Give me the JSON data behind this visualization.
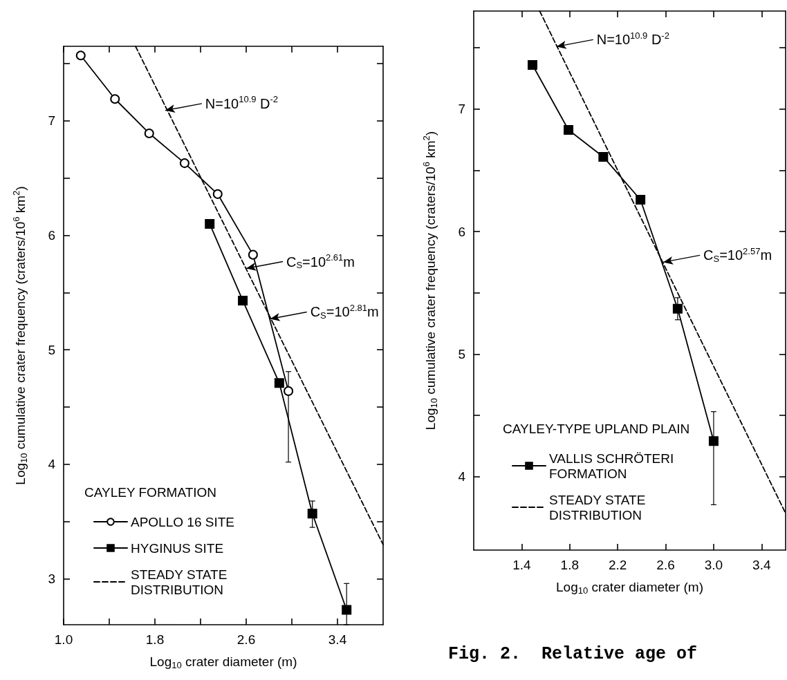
{
  "chart_data": [
    {
      "type": "line",
      "xlabel": "Log$_{10}$ crater diameter (m)",
      "ylabel": "Log$_{10}$ cumulative crater frequency (craters/10$^{6}$ km$^{2}$)",
      "legend_title": "CAYLEY FORMATION",
      "legend": "bottom left",
      "grid": false,
      "xlim": [
        1.0,
        3.8
      ],
      "xticks": [
        {
          "value": 1,
          "label": "1.0"
        },
        {
          "value": 1.4,
          "label": null
        },
        1.8,
        {
          "value": 2.2,
          "label": null
        },
        2.6,
        {
          "value": 3,
          "label": null
        },
        3.4
      ],
      "ylim": [
        2.6,
        7.65
      ],
      "yticks": [
        3,
        {
          "value": 3.5,
          "label": null
        },
        4,
        {
          "value": 4.5,
          "label": null
        },
        5,
        {
          "value": 5.5,
          "label": null
        },
        6,
        {
          "value": 6.5,
          "label": null
        },
        7,
        {
          "value": 7.5,
          "label": null
        }
      ],
      "series": [
        {
          "name": "APOLLO 16 SITE",
          "color": "#000000",
          "marker": "circle",
          "x": [
            1.15,
            1.45,
            1.75,
            2.06,
            2.35,
            2.66,
            2.97
          ],
          "values": [
            7.57,
            7.19,
            6.89,
            6.63,
            6.36,
            5.83,
            4.64
          ],
          "errors": [
            null,
            null,
            null,
            null,
            null,
            null,
            [
              4.02,
              4.81
            ]
          ]
        },
        {
          "name": "HYGINUS SITE",
          "color": "#000000",
          "marker": "square",
          "x": [
            2.28,
            2.57,
            2.89,
            3.18,
            3.48
          ],
          "values": [
            6.1,
            5.43,
            4.71,
            3.57,
            2.73
          ],
          "errors": [
            null,
            null,
            null,
            [
              3.45,
              3.68
            ],
            [
              2.6,
              2.96
            ]
          ]
        },
        {
          "name": "STEADY STATE DISTRIBUTION",
          "color": "#000000",
          "marker": "none",
          "line_style": "dashed",
          "x": [
            1.63,
            3.8
          ],
          "values": [
            7.65,
            3.3
          ]
        }
      ],
      "annotations": [
        {
          "text": "N=10$^{10.9}$ D$^{-2}$",
          "x": 1.89,
          "y": 7.09
        },
        {
          "text": "C$_{S}$=10$^{2.61}$m",
          "x": 2.6,
          "y": 5.71
        },
        {
          "text": "C$_{S}$=10$^{2.81}$m",
          "x": 2.81,
          "y": 5.27
        }
      ]
    },
    {
      "type": "line",
      "xlabel": "Log$_{10}$ crater diameter (m)",
      "ylabel": "Log$_{10}$ cumulative crater frequency (craters/10$^{6}$ km$^{2}$)",
      "legend_title": "CAYLEY-TYPE UPLAND PLAIN",
      "legend": "bottom left",
      "grid": false,
      "xlim": [
        1.0,
        3.6
      ],
      "xticks": [
        1.4,
        1.8,
        2.2,
        2.6,
        {
          "value": 3,
          "label": "3.0"
        },
        3.4
      ],
      "ylim": [
        3.4,
        7.8
      ],
      "yticks": [
        4,
        {
          "value": 4.5,
          "label": null
        },
        5,
        {
          "value": 5.5,
          "label": null
        },
        6,
        {
          "value": 6.5,
          "label": null
        },
        7,
        {
          "value": 7.5,
          "label": null
        }
      ],
      "series": [
        {
          "name": "VALLIS SCHRÖTERI FORMATION",
          "color": "#000000",
          "marker": "square",
          "x": [
            1.49,
            1.79,
            2.08,
            2.39,
            2.7,
            3.0
          ],
          "values": [
            7.36,
            6.83,
            6.61,
            6.26,
            5.37,
            4.29
          ],
          "errors": [
            null,
            null,
            null,
            null,
            [
              5.28,
              5.46
            ],
            [
              3.77,
              4.53
            ]
          ]
        },
        {
          "name": "STEADY STATE DISTRIBUTION",
          "color": "#000000",
          "marker": "none",
          "line_style": "dashed",
          "x": [
            1.55,
            3.6
          ],
          "values": [
            7.8,
            3.7
          ]
        }
      ],
      "annotations": [
        {
          "text": "N=10$^{10.9}$ D$^{-2}$",
          "x": 1.69,
          "y": 7.51
        },
        {
          "text": "C$_{S}$=10$^{2.57}$m",
          "x": 2.58,
          "y": 5.75
        },
        "Fig. 2.  Relative age of"
      ]
    }
  ]
}
